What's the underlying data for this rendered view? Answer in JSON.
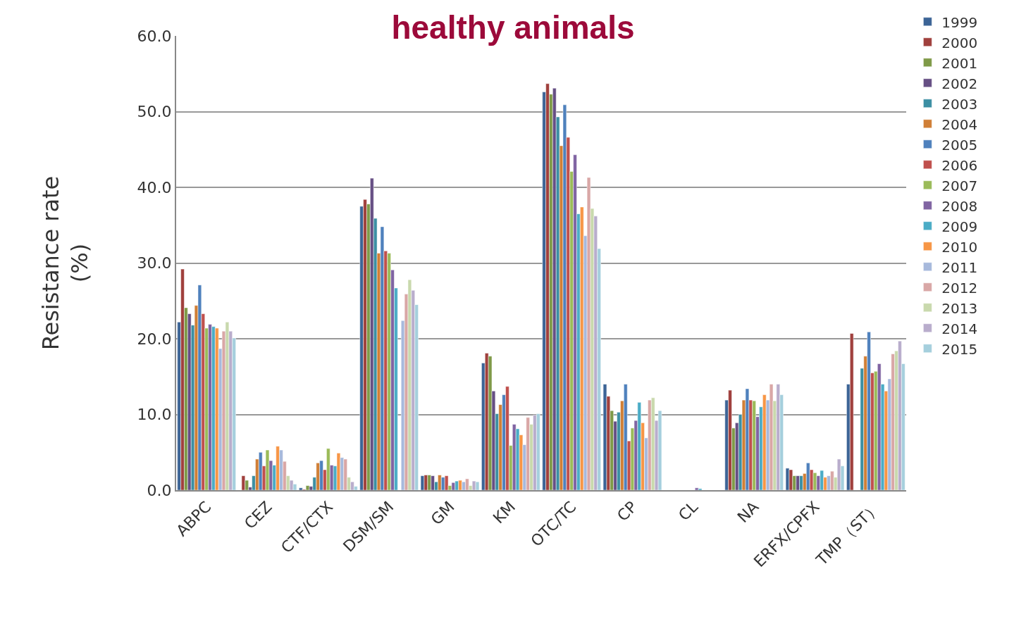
{
  "chart_data": {
    "type": "bar",
    "title": "healthy animals",
    "ylabel": "Resistance rate\n(%)",
    "categories": [
      "ABPC",
      "CEZ",
      "CTF/CTX",
      "DSM/SM",
      "GM",
      "KM",
      "OTC/TC",
      "CP",
      "CL",
      "NA",
      "ERFX/CPFX",
      "TMP（ST）"
    ],
    "ylim": [
      0,
      60
    ],
    "yticks": [
      {
        "value": 0,
        "label": "0.0"
      },
      {
        "value": 10,
        "label": "10.0"
      },
      {
        "value": 20,
        "label": "20.0"
      },
      {
        "value": 30,
        "label": "30.0"
      },
      {
        "value": 40,
        "label": "40.0"
      },
      {
        "value": 50,
        "label": "50.0"
      },
      {
        "value": 60,
        "label": "60.0"
      }
    ],
    "grid": "y",
    "legend": "right",
    "series": [
      {
        "name": "1999",
        "color": "#3c6496",
        "values": [
          22.2,
          null,
          0.3,
          37.5,
          1.9,
          16.8,
          52.6,
          14.0,
          null,
          11.9,
          2.9,
          14.0
        ]
      },
      {
        "name": "2000",
        "color": "#a0403d",
        "values": [
          29.2,
          1.9,
          0.1,
          38.4,
          2.0,
          18.1,
          53.7,
          12.4,
          null,
          13.2,
          2.7,
          20.7
        ]
      },
      {
        "name": "2001",
        "color": "#7f9a48",
        "values": [
          24.1,
          1.3,
          0.6,
          37.8,
          2.0,
          17.7,
          52.3,
          10.5,
          null,
          8.2,
          1.9,
          null
        ]
      },
      {
        "name": "2002",
        "color": "#664f84",
        "values": [
          23.3,
          0.4,
          0.5,
          41.2,
          1.9,
          13.1,
          53.1,
          9.1,
          null,
          8.9,
          1.9,
          null
        ]
      },
      {
        "name": "2003",
        "color": "#3c8fa3",
        "values": [
          21.8,
          1.9,
          1.7,
          35.9,
          1.1,
          10.1,
          49.3,
          10.3,
          null,
          10.0,
          1.9,
          16.1
        ]
      },
      {
        "name": "2004",
        "color": "#d07f36",
        "values": [
          24.4,
          4.1,
          3.6,
          31.3,
          2.0,
          11.3,
          45.5,
          11.8,
          null,
          11.9,
          2.2,
          17.7
        ]
      },
      {
        "name": "2005",
        "color": "#4f81bd",
        "values": [
          27.1,
          5.0,
          3.9,
          34.8,
          1.7,
          12.6,
          50.9,
          14.0,
          null,
          13.4,
          3.6,
          20.9
        ]
      },
      {
        "name": "2006",
        "color": "#c0504d",
        "values": [
          23.3,
          3.2,
          2.7,
          31.6,
          1.9,
          13.7,
          46.6,
          6.5,
          null,
          11.9,
          2.7,
          15.5
        ]
      },
      {
        "name": "2007",
        "color": "#9bbb59",
        "values": [
          21.4,
          5.3,
          5.5,
          31.3,
          0.6,
          5.9,
          42.1,
          8.2,
          null,
          11.8,
          2.3,
          15.7
        ]
      },
      {
        "name": "2008",
        "color": "#8064a2",
        "values": [
          21.9,
          3.9,
          3.3,
          29.1,
          1.0,
          8.7,
          44.3,
          9.2,
          0.3,
          9.7,
          1.9,
          16.7
        ]
      },
      {
        "name": "2009",
        "color": "#4bacc6",
        "values": [
          21.6,
          3.3,
          3.2,
          26.7,
          1.2,
          8.1,
          36.5,
          11.6,
          0.2,
          11.0,
          2.6,
          14.0
        ]
      },
      {
        "name": "2010",
        "color": "#f79646",
        "values": [
          21.4,
          5.8,
          4.9,
          null,
          1.3,
          7.3,
          37.4,
          8.9,
          null,
          12.6,
          1.7,
          13.1
        ]
      },
      {
        "name": "2011",
        "color": "#a7b9dc",
        "values": [
          18.7,
          5.3,
          4.3,
          22.4,
          1.1,
          6.0,
          33.6,
          6.9,
          null,
          11.9,
          1.9,
          14.7
        ]
      },
      {
        "name": "2012",
        "color": "#d9a7a6",
        "values": [
          21.0,
          3.8,
          4.1,
          25.9,
          1.5,
          9.6,
          41.3,
          11.9,
          null,
          14.0,
          2.5,
          18.0
        ]
      },
      {
        "name": "2013",
        "color": "#c9d9ad",
        "values": [
          22.2,
          1.9,
          1.7,
          27.8,
          0.6,
          8.7,
          37.2,
          12.2,
          null,
          11.8,
          1.7,
          18.4
        ]
      },
      {
        "name": "2014",
        "color": "#b9adcc",
        "values": [
          21.0,
          1.3,
          1.1,
          26.4,
          1.2,
          9.9,
          36.2,
          9.2,
          null,
          14.0,
          4.1,
          19.7
        ]
      },
      {
        "name": "2015",
        "color": "#a5cfdd",
        "values": [
          20.1,
          0.8,
          0.5,
          24.5,
          1.1,
          10.1,
          31.9,
          10.5,
          null,
          12.6,
          3.2,
          16.7
        ]
      }
    ]
  }
}
